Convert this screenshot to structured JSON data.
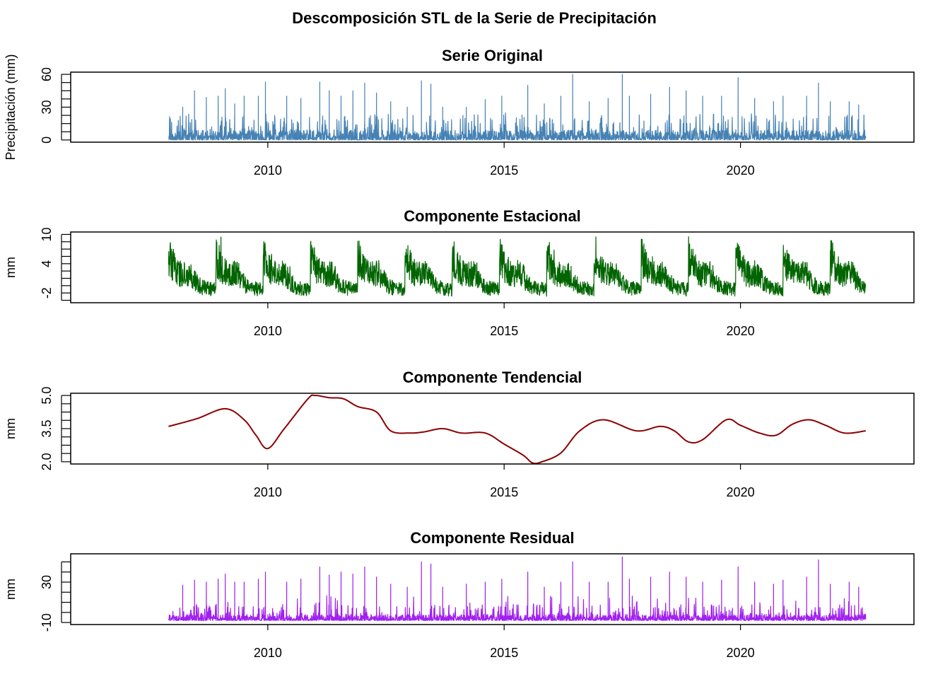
{
  "title": "Descomposición STL de la Serie de Precipitación",
  "chart_data": [
    {
      "type": "line",
      "title": "Serie Original",
      "ylabel": "Precipitación (mm)",
      "xlabel": "",
      "color": "#4682B4",
      "xlim": [
        2005.83,
        2023.67
      ],
      "ylim": [
        -2,
        62
      ],
      "x_ticks": [
        "2010",
        "2015",
        "2020"
      ],
      "y_ticks": [
        "0",
        "30",
        "60"
      ],
      "grid": false,
      "series": [
        {
          "kind": "daily_spikes",
          "x_start": 2007.9,
          "x_end": 2022.65,
          "min": 0,
          "base_max": 3,
          "peaks": [
            [
              2008.2,
              30
            ],
            [
              2008.45,
              45
            ],
            [
              2008.7,
              39
            ],
            [
              2008.95,
              40
            ],
            [
              2009.1,
              47
            ],
            [
              2009.3,
              33
            ],
            [
              2009.5,
              40
            ],
            [
              2009.8,
              40
            ],
            [
              2009.95,
              53
            ],
            [
              2010.4,
              40
            ],
            [
              2010.7,
              38
            ],
            [
              2011.1,
              53
            ],
            [
              2011.3,
              45
            ],
            [
              2011.55,
              40
            ],
            [
              2011.8,
              45
            ],
            [
              2012.05,
              52
            ],
            [
              2012.3,
              43
            ],
            [
              2012.6,
              35
            ],
            [
              2012.95,
              30
            ],
            [
              2013.25,
              54
            ],
            [
              2013.45,
              51
            ],
            [
              2013.7,
              30
            ],
            [
              2014.2,
              30
            ],
            [
              2014.6,
              37
            ],
            [
              2014.95,
              40
            ],
            [
              2015.5,
              50
            ],
            [
              2015.85,
              33
            ],
            [
              2016.2,
              40
            ],
            [
              2016.45,
              60
            ],
            [
              2016.8,
              35
            ],
            [
              2017.2,
              38
            ],
            [
              2017.5,
              60
            ],
            [
              2017.65,
              40
            ],
            [
              2018.1,
              42
            ],
            [
              2018.5,
              48
            ],
            [
              2018.85,
              45
            ],
            [
              2019.2,
              40
            ],
            [
              2019.6,
              40
            ],
            [
              2019.95,
              57
            ],
            [
              2020.3,
              38
            ],
            [
              2020.7,
              35
            ],
            [
              2020.9,
              40
            ],
            [
              2021.4,
              40
            ],
            [
              2021.65,
              52
            ],
            [
              2021.9,
              35
            ],
            [
              2022.3,
              35
            ],
            [
              2022.5,
              32
            ]
          ]
        }
      ]
    },
    {
      "type": "line",
      "title": "Componente Estacional",
      "ylabel": "mm",
      "xlabel": "",
      "color": "#006400",
      "xlim": [
        2005.83,
        2023.67
      ],
      "ylim": [
        -4,
        10.5
      ],
      "x_ticks": [
        "2010",
        "2015",
        "2020"
      ],
      "y_ticks": [
        "-2",
        "4",
        "10"
      ],
      "grid": false,
      "series": [
        {
          "kind": "seasonal",
          "x_start": 2007.9,
          "x_end": 2022.65,
          "period_years": 1,
          "peak_phase": 0.9,
          "min": -3.2,
          "max": 10
        }
      ]
    },
    {
      "type": "line",
      "title": "Componente Tendencial",
      "ylabel": "mm",
      "xlabel": "",
      "color": "#8B0000",
      "xlim": [
        2005.83,
        2023.67
      ],
      "ylim": [
        1.9,
        5.1
      ],
      "x_ticks": [
        "2010",
        "2015",
        "2020"
      ],
      "y_ticks": [
        "2.0",
        "3.5",
        "5.0"
      ],
      "grid": false,
      "series": [
        {
          "kind": "smooth",
          "x": [
            2007.9,
            2008.5,
            2009.1,
            2009.5,
            2009.75,
            2010.0,
            2010.35,
            2010.85,
            2011.0,
            2011.3,
            2011.6,
            2011.9,
            2012.3,
            2012.6,
            2013.0,
            2013.3,
            2013.7,
            2014.1,
            2014.6,
            2015.0,
            2015.4,
            2015.6,
            2015.8,
            2016.2,
            2016.6,
            2017.1,
            2017.8,
            2018.3,
            2018.6,
            2018.9,
            2019.2,
            2019.7,
            2020.0,
            2020.4,
            2020.75,
            2021.1,
            2021.45,
            2021.8,
            2022.2,
            2022.65
          ],
          "y": [
            3.6,
            3.95,
            4.4,
            3.9,
            3.2,
            2.6,
            3.5,
            4.85,
            5.0,
            4.9,
            4.85,
            4.5,
            4.25,
            3.4,
            3.3,
            3.35,
            3.5,
            3.3,
            3.3,
            2.8,
            2.3,
            1.95,
            2.0,
            2.4,
            3.4,
            3.9,
            3.4,
            3.6,
            3.4,
            2.9,
            3.0,
            3.9,
            3.65,
            3.3,
            3.2,
            3.7,
            3.9,
            3.65,
            3.3,
            3.4
          ]
        }
      ]
    },
    {
      "type": "line",
      "title": "Componente Residual",
      "ylabel": "mm",
      "xlabel": "",
      "color": "#A020F0",
      "xlim": [
        2005.83,
        2023.67
      ],
      "ylim": [
        -12,
        58
      ],
      "x_ticks": [
        "2010",
        "2015",
        "2020"
      ],
      "y_ticks": [
        "-10",
        "30"
      ],
      "grid": false,
      "series": [
        {
          "kind": "daily_spikes",
          "x_start": 2007.9,
          "x_end": 2022.65,
          "min": -8,
          "base_max": 2,
          "peaks": [
            [
              2008.2,
              27
            ],
            [
              2008.45,
              32
            ],
            [
              2008.7,
              30
            ],
            [
              2008.95,
              33
            ],
            [
              2009.1,
              38
            ],
            [
              2009.3,
              30
            ],
            [
              2009.5,
              30
            ],
            [
              2009.8,
              33
            ],
            [
              2009.95,
              40
            ],
            [
              2010.4,
              30
            ],
            [
              2010.7,
              33
            ],
            [
              2011.1,
              45
            ],
            [
              2011.3,
              37
            ],
            [
              2011.55,
              40
            ],
            [
              2011.8,
              38
            ],
            [
              2012.05,
              45
            ],
            [
              2012.3,
              35
            ],
            [
              2012.6,
              28
            ],
            [
              2012.95,
              25
            ],
            [
              2013.25,
              50
            ],
            [
              2013.45,
              48
            ],
            [
              2013.7,
              25
            ],
            [
              2014.2,
              28
            ],
            [
              2014.6,
              30
            ],
            [
              2014.95,
              33
            ],
            [
              2015.5,
              40
            ],
            [
              2015.85,
              25
            ],
            [
              2016.2,
              30
            ],
            [
              2016.45,
              50
            ],
            [
              2016.8,
              30
            ],
            [
              2017.2,
              30
            ],
            [
              2017.5,
              55
            ],
            [
              2017.65,
              33
            ],
            [
              2018.1,
              35
            ],
            [
              2018.5,
              40
            ],
            [
              2018.85,
              35
            ],
            [
              2019.2,
              30
            ],
            [
              2019.6,
              32
            ],
            [
              2019.95,
              45
            ],
            [
              2020.3,
              30
            ],
            [
              2020.7,
              28
            ],
            [
              2020.9,
              32
            ],
            [
              2021.4,
              35
            ],
            [
              2021.65,
              52
            ],
            [
              2021.9,
              28
            ],
            [
              2022.3,
              30
            ],
            [
              2022.5,
              25
            ]
          ]
        }
      ]
    }
  ]
}
